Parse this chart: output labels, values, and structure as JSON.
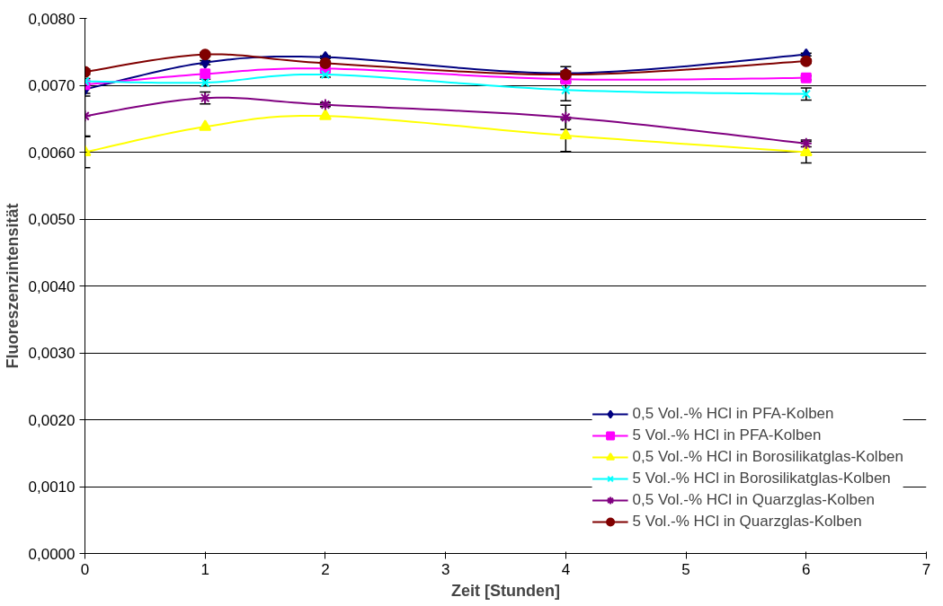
{
  "chart_data": {
    "type": "line",
    "xlabel": "Zeit [Stunden]",
    "ylabel": "Fluoreszenzintensität",
    "x": [
      0,
      1,
      2,
      4,
      6
    ],
    "xlim": [
      0,
      7
    ],
    "xticks": [
      0,
      1,
      2,
      3,
      4,
      5,
      6,
      7
    ],
    "ylim": [
      0,
      0.008
    ],
    "yticks": [
      {
        "value": 0,
        "label": "0,0000"
      },
      {
        "value": 0.001,
        "label": "0,0010"
      },
      {
        "value": 0.002,
        "label": "0,0020"
      },
      {
        "value": 0.003,
        "label": "0,0030"
      },
      {
        "value": 0.004,
        "label": "0,0040"
      },
      {
        "value": 0.005,
        "label": "0,0050"
      },
      {
        "value": 0.006,
        "label": "0,0060"
      },
      {
        "value": 0.007,
        "label": "0,0070"
      },
      {
        "value": 0.008,
        "label": "0,0080"
      }
    ],
    "grid": "y",
    "legend": "bottom right",
    "series": [
      {
        "name": "0,5 Vol.-% HCl in PFA-Kolben",
        "color": "#000080",
        "marker": "diamond",
        "values": [
          0.00694,
          0.00734,
          0.00742,
          0.00718,
          0.00746
        ],
        "errors": [
          6e-05,
          3e-05,
          2e-05,
          3e-05,
          2e-05
        ]
      },
      {
        "name": "5 Vol.-% HCl in PFA-Kolben",
        "color": "#ff00ff",
        "marker": "square",
        "values": [
          0.00701,
          0.00717,
          0.00725,
          0.00709,
          0.00711
        ],
        "errors": [
          5e-05,
          null,
          3e-05,
          3e-05,
          3e-05
        ]
      },
      {
        "name": "0,5 Vol.-% HCl in Borosilikatglas-Kolben",
        "color": "#ffff00",
        "marker": "triangle",
        "values": [
          0.006,
          0.00638,
          0.00654,
          0.00625,
          0.006
        ],
        "errors": [
          0.00023,
          null,
          null,
          0.00024,
          0.00016
        ]
      },
      {
        "name": "5 Vol.-% HCl in Borosilikatglas-Kolben",
        "color": "#00ffff",
        "marker": "x",
        "values": [
          0.00706,
          0.00704,
          0.00716,
          0.00693,
          0.00687
        ],
        "errors": [
          4e-05,
          5e-05,
          4e-05,
          0.00016,
          9e-05
        ]
      },
      {
        "name": "0,5 Vol.-% HCl in Quarzglas-Kolben",
        "color": "#800080",
        "marker": "cross",
        "values": [
          0.00654,
          0.00681,
          0.00671,
          0.00652,
          0.00613
        ],
        "errors": [
          0.0003,
          9e-05,
          3e-05,
          0.00018,
          5e-05
        ]
      },
      {
        "name": "5 Vol.-% HCl in Quarzglas-Kolben",
        "color": "#800000",
        "marker": "circle",
        "values": [
          0.0072,
          0.00746,
          0.00733,
          0.00716,
          0.00736
        ],
        "errors": [
          4e-05,
          3e-05,
          3e-05,
          0.00012,
          3e-05
        ]
      }
    ]
  }
}
